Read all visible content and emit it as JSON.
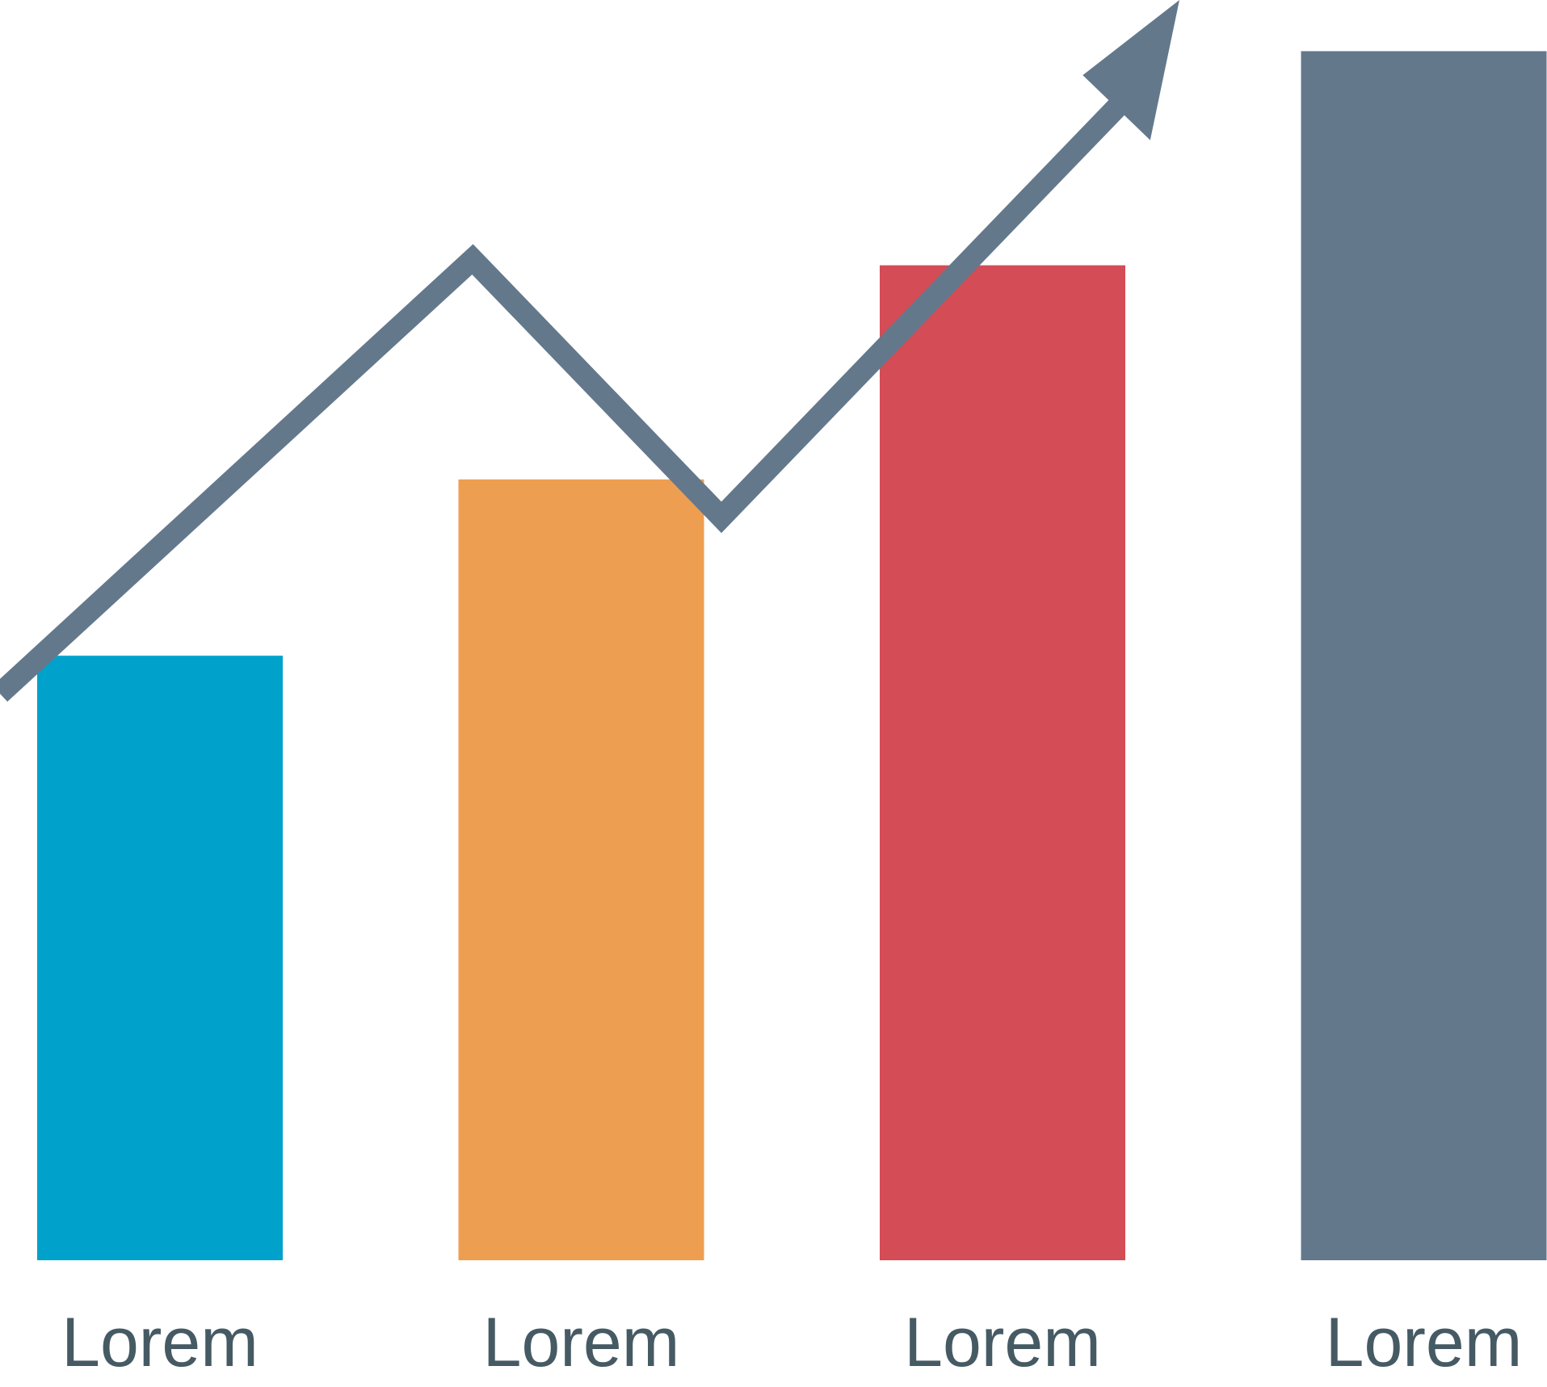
{
  "chart_data": {
    "type": "bar",
    "categories": [
      "Lorem",
      "Lorem",
      "Lorem",
      "Lorem"
    ],
    "values": [
      48,
      62,
      79,
      96
    ],
    "colors": [
      "#00a2cc",
      "#ee9e50",
      "#d44c55",
      "#64788c"
    ],
    "ylim": [
      0,
      100
    ],
    "title": "",
    "xlabel": "",
    "ylabel": "",
    "grid": false,
    "trend": {
      "values": [
        53,
        73,
        62,
        96
      ],
      "color": "#64788c",
      "arrow": true,
      "arrow_icon": "arrow-head-icon"
    },
    "label_color": "#465a64"
  }
}
